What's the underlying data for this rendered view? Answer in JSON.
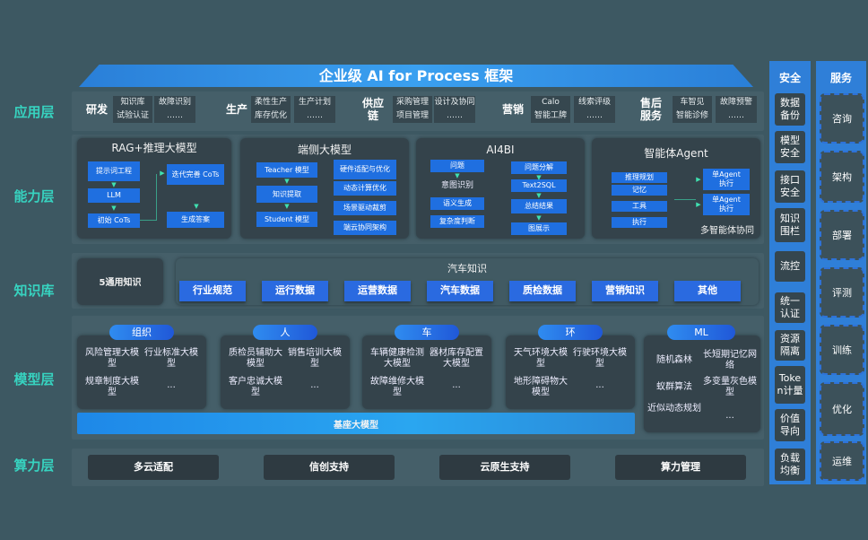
{
  "title": "企业级 AI for Process 框架",
  "layers": {
    "app": "应用层",
    "capability": "能力层",
    "knowledge": "知识库",
    "model": "模型层",
    "compute": "算力层"
  },
  "app": [
    {
      "name": "研发",
      "items": [
        "知识库",
        "试验认证",
        "故障识别",
        "……"
      ]
    },
    {
      "name": "生产",
      "items": [
        "柔性生产",
        "库存优化",
        "生产计划",
        "……"
      ]
    },
    {
      "name": "供应链",
      "items": [
        "采购管理",
        "项目管理",
        "设计及协同",
        "……"
      ]
    },
    {
      "name": "营销",
      "items": [
        "Calo",
        "智能工牌",
        "线索评级",
        "……"
      ]
    },
    {
      "name": "售后服务",
      "items": [
        "车智见",
        "智能诊修",
        "故障预警",
        "……"
      ]
    }
  ],
  "capability": {
    "rag": {
      "title": "RAG+推理大模型",
      "steps": [
        "提示词工程",
        "LLM",
        "初始 CoTs",
        "迭代完善 CoTs",
        "生成答案"
      ]
    },
    "edge": {
      "title": "端侧大模型",
      "left": [
        "Teacher 模型",
        "知识提取",
        "Student 模型"
      ],
      "right": [
        "硬件适配与优化",
        "动态计算优化",
        "场景驱动裁剪",
        "端云协同架构"
      ]
    },
    "ai4bi": {
      "title": "AI4BI",
      "left": [
        "问题",
        "意图识别",
        "语义生成",
        "复杂度判断"
      ],
      "right": [
        "问题分解",
        "Text2SQL",
        "总结结果",
        "图展示"
      ]
    },
    "agent": {
      "title": "智能体Agent",
      "left": [
        "推理规划",
        "记忆",
        "工具",
        "执行"
      ],
      "right": [
        "单Agent执行",
        "单Agent执行"
      ],
      "footer": "多智能体协同"
    }
  },
  "knowledge": {
    "general": "5通用知识",
    "auto_title": "汽车知识",
    "items": [
      "行业规范",
      "运行数据",
      "运营数据",
      "汽车数据",
      "质检数据",
      "营销知识",
      "其他"
    ]
  },
  "model": {
    "groups": [
      {
        "tag": "组织",
        "items": [
          "风险管理大模型",
          "行业标准大模型",
          "规章制度大模型",
          "..."
        ]
      },
      {
        "tag": "人",
        "items": [
          "质检员辅助大模型",
          "销售培训大模型",
          "客户忠诚大模型",
          "..."
        ]
      },
      {
        "tag": "车",
        "items": [
          "车辆健康检测大模型",
          "器材库存配置大模型",
          "故障维修大模型",
          "..."
        ]
      },
      {
        "tag": "环",
        "items": [
          "天气环境大模型",
          "行驶环境大模型",
          "地形障碍物大模型",
          "..."
        ]
      }
    ],
    "ml": {
      "tag": "ML",
      "items": [
        "随机森林",
        "长短期记忆网络",
        "蚁群算法",
        "多变量灰色模型",
        "近似动态规划",
        "..."
      ]
    },
    "base": "基座大模型"
  },
  "compute": [
    "多云适配",
    "信创支持",
    "云原生支持",
    "算力管理"
  ],
  "security": {
    "title": "安全",
    "items": [
      "数据备份",
      "模型安全",
      "接口安全",
      "知识围栏",
      "流控",
      "统一认证",
      "资源隔离",
      "Token计量",
      "价值导向",
      "负载均衡"
    ]
  },
  "services": {
    "title": "服务",
    "items": [
      "咨询",
      "架构",
      "部署",
      "评测",
      "训练",
      "优化",
      "运维"
    ]
  },
  "colors": {
    "background": "#3d5862",
    "accent_blue": "#1f6fe0",
    "layer_label": "#37d3c0"
  }
}
